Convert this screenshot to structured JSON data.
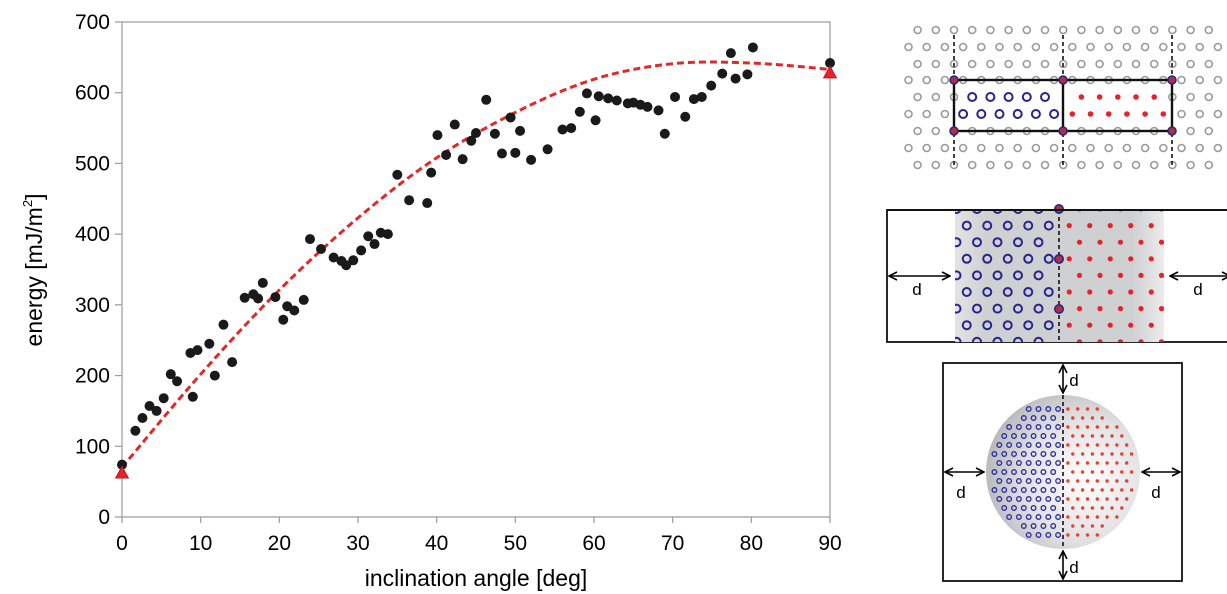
{
  "chart_data": {
    "type": "scatter",
    "xlabel": "inclination angle [deg]",
    "ylabel": "energy [mJ/m",
    "ylabel_sup": "2",
    "ylabel_end": "]",
    "xlim": [
      0,
      90
    ],
    "ylim": [
      0,
      700
    ],
    "x_ticks": [
      "0",
      "10",
      "20",
      "30",
      "40",
      "50",
      "60",
      "70",
      "80",
      "90"
    ],
    "y_ticks": [
      "0",
      "100",
      "200",
      "300",
      "400",
      "500",
      "600",
      "700"
    ],
    "grid": false,
    "series": [
      {
        "marker": "circle",
        "color": "#1a1a1a",
        "points": [
          [
            0,
            74
          ],
          [
            1.7,
            122
          ],
          [
            2.6,
            140
          ],
          [
            3.5,
            157
          ],
          [
            4.4,
            150
          ],
          [
            5.3,
            168
          ],
          [
            6.2,
            202
          ],
          [
            7.0,
            192
          ],
          [
            8.7,
            232
          ],
          [
            9.0,
            170
          ],
          [
            9.6,
            236
          ],
          [
            11.1,
            245
          ],
          [
            11.8,
            200
          ],
          [
            12.9,
            272
          ],
          [
            14.0,
            219
          ],
          [
            15.6,
            310
          ],
          [
            16.7,
            315
          ],
          [
            17.3,
            309
          ],
          [
            17.9,
            331
          ],
          [
            19.5,
            311
          ],
          [
            20.5,
            279
          ],
          [
            21.0,
            298
          ],
          [
            21.9,
            292
          ],
          [
            23.1,
            307
          ],
          [
            23.9,
            393
          ],
          [
            25.3,
            379
          ],
          [
            26.9,
            367
          ],
          [
            27.9,
            362
          ],
          [
            28.5,
            356
          ],
          [
            29.4,
            363
          ],
          [
            30.4,
            377
          ],
          [
            31.3,
            397
          ],
          [
            32.1,
            386
          ],
          [
            32.9,
            402
          ],
          [
            33.8,
            400
          ],
          [
            35.0,
            484
          ],
          [
            36.5,
            448
          ],
          [
            38.8,
            444
          ],
          [
            39.3,
            487
          ],
          [
            40.1,
            540
          ],
          [
            41.2,
            512
          ],
          [
            42.3,
            555
          ],
          [
            43.3,
            506
          ],
          [
            44.4,
            532
          ],
          [
            45.0,
            543
          ],
          [
            46.3,
            590
          ],
          [
            47.4,
            542
          ],
          [
            48.3,
            514
          ],
          [
            49.4,
            565
          ],
          [
            50.0,
            515
          ],
          [
            50.6,
            546
          ],
          [
            52.0,
            505
          ],
          [
            54.1,
            520
          ],
          [
            56.0,
            548
          ],
          [
            57.1,
            550
          ],
          [
            58.2,
            573
          ],
          [
            59.1,
            599
          ],
          [
            60.2,
            561
          ],
          [
            60.6,
            595
          ],
          [
            61.8,
            592
          ],
          [
            62.9,
            589
          ],
          [
            64.3,
            585
          ],
          [
            65.0,
            586
          ],
          [
            65.9,
            583
          ],
          [
            66.8,
            580
          ],
          [
            68.2,
            575
          ],
          [
            69.0,
            542
          ],
          [
            70.3,
            594
          ],
          [
            71.6,
            566
          ],
          [
            72.7,
            591
          ],
          [
            73.7,
            594
          ],
          [
            74.9,
            610
          ],
          [
            76.3,
            627
          ],
          [
            77.4,
            656
          ],
          [
            78.0,
            620
          ],
          [
            79.5,
            626
          ],
          [
            80.2,
            664
          ],
          [
            90,
            642
          ]
        ]
      },
      {
        "marker": "triangle",
        "color": "#e8212a",
        "points": [
          [
            0,
            62
          ],
          [
            90,
            628
          ]
        ]
      }
    ],
    "fit_curve": {
      "style": "dashed",
      "color": "#e02a2a",
      "points": [
        [
          0,
          70
        ],
        [
          10,
          202
        ],
        [
          20,
          321
        ],
        [
          30,
          423
        ],
        [
          40,
          508
        ],
        [
          50,
          572
        ],
        [
          60,
          619
        ],
        [
          70,
          641
        ],
        [
          80,
          642
        ],
        [
          90,
          633
        ]
      ]
    }
  },
  "schematics": {
    "panel_2_label": "d",
    "panel_3_label": "d"
  }
}
